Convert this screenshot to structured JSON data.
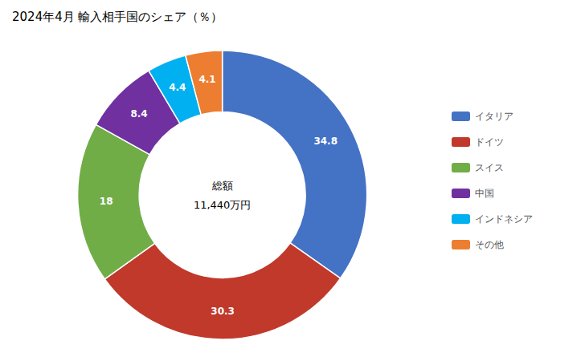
{
  "chart_data": {
    "type": "donut",
    "title": "2024年4月 輸入相手国のシェア（％）",
    "annotations": [
      "総額",
      "11,440万円"
    ],
    "categories": [
      "イタリア",
      "ドイツ",
      "スイス",
      "中国",
      "インドネシア",
      "その他"
    ],
    "values": [
      34.8,
      30.3,
      18.0,
      8.4,
      4.4,
      4.1
    ],
    "colors": [
      "#4472C4",
      "#C0392B",
      "#70AD47",
      "#7030A0",
      "#00B0F0",
      "#ED7D31"
    ],
    "data_labels": true,
    "legend": "right"
  }
}
